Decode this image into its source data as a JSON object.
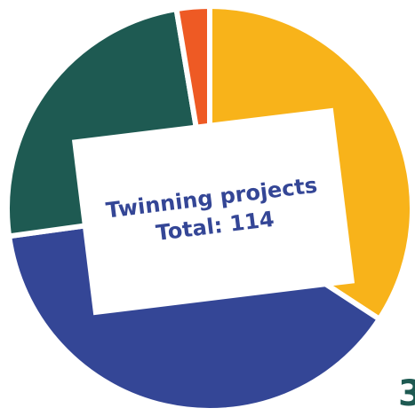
{
  "chart_data": {
    "type": "pie",
    "title": "Twinning projects",
    "subtitle": "Total: 114",
    "total": 114,
    "slices": [
      {
        "value": 39,
        "color": "#F8B31A"
      },
      {
        "value": 44,
        "color": "#344696"
      },
      {
        "value": 28,
        "color": "#1E5A52"
      },
      {
        "value": 3,
        "color": "#EE5A24"
      }
    ],
    "start": "top, clockwise",
    "legend": "none"
  },
  "colors": {
    "label_text": "#344696",
    "corner_text": "#1E5A52",
    "background": "#ffffff"
  },
  "corner_text": "3"
}
